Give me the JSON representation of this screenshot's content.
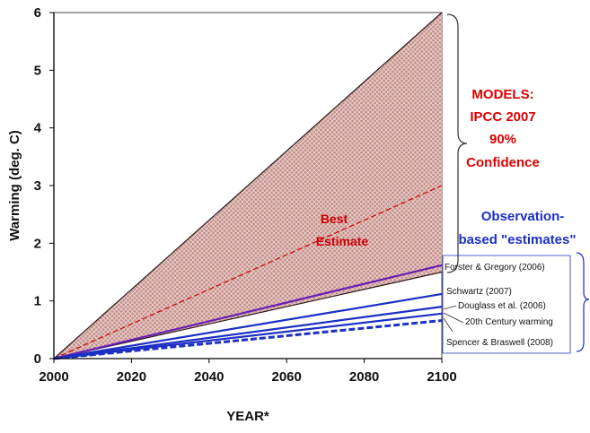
{
  "chart_data": {
    "type": "line",
    "title": "",
    "xlabel": "YEAR*",
    "ylabel": "Warming (deg. C)",
    "xlim": [
      2000,
      2100
    ],
    "ylim": [
      0,
      6
    ],
    "x_ticks": [
      "2000",
      "2020",
      "2040",
      "2060",
      "2080",
      "2100"
    ],
    "y_ticks": [
      "0",
      "1",
      "2",
      "3",
      "4",
      "5",
      "6"
    ],
    "grid": false,
    "models_band": {
      "label_lines": [
        "MODELS:",
        "IPCC 2007",
        "90%",
        "Confidence"
      ],
      "lower": [
        [
          2000,
          0
        ],
        [
          2100,
          1.5
        ]
      ],
      "upper": [
        [
          2000,
          0
        ],
        [
          2100,
          6.0
        ]
      ],
      "color": "#c0504d"
    },
    "best_estimate": {
      "label_lines": [
        "Best",
        "Estimate"
      ],
      "points": [
        [
          2000,
          0
        ],
        [
          2100,
          3.0
        ]
      ],
      "color": "#cc0000"
    },
    "observation_group_label_lines": [
      "Observation-",
      "based \"estimates\""
    ],
    "series": [
      {
        "name": "Forster & Gregory (2006)",
        "points": [
          [
            2000,
            0
          ],
          [
            2100,
            1.62
          ]
        ],
        "style": "solid",
        "color": "#6a1fb3"
      },
      {
        "name": "Schwartz (2007)",
        "points": [
          [
            2000,
            0
          ],
          [
            2100,
            1.12
          ]
        ],
        "style": "solid",
        "color": "#1c2fc4"
      },
      {
        "name": "Douglass et al. (2006)",
        "points": [
          [
            2000,
            0
          ],
          [
            2100,
            0.9
          ]
        ],
        "style": "solid",
        "color": "#1c2fc4"
      },
      {
        "name": "20th Century warming",
        "points": [
          [
            2000,
            0
          ],
          [
            2100,
            0.78
          ]
        ],
        "style": "solid",
        "color": "#1c2fc4"
      },
      {
        "name": "Spencer & Braswell (2008)",
        "points": [
          [
            2000,
            0
          ],
          [
            2100,
            0.66
          ]
        ],
        "style": "dashed",
        "color": "#1c2fc4"
      }
    ],
    "colors": {
      "models_text": "#dd0000",
      "observation_text": "#1c2fc4",
      "axis": "#000000"
    }
  }
}
